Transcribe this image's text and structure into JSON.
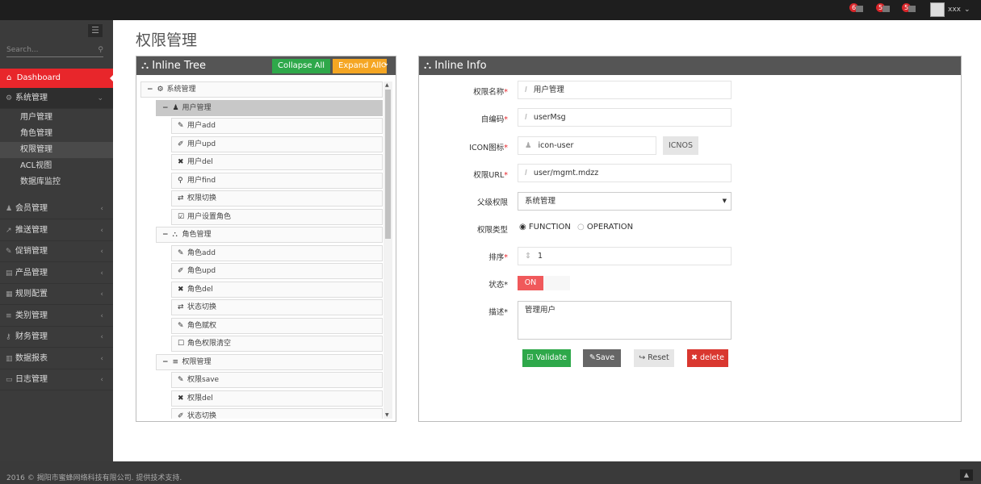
{
  "topbar": {
    "notifications": [
      {
        "count": "6",
        "icon": "bell-icon"
      },
      {
        "count": "5",
        "icon": "envelope-icon"
      },
      {
        "count": "5",
        "icon": "tasks-icon"
      }
    ],
    "user": {
      "name": "xxx"
    }
  },
  "sidebar": {
    "search_placeholder": "Search...",
    "dashboard": "Dashboard",
    "group": {
      "label": "系统管理",
      "icon": "cogs-icon",
      "items": [
        "用户管理",
        "角色管理",
        "权限管理",
        "ACL视图",
        "数据库监控"
      ],
      "active": 2
    },
    "items": [
      {
        "label": "会员管理",
        "icon": "user-icon"
      },
      {
        "label": "推送管理",
        "icon": "share-icon"
      },
      {
        "label": "促销管理",
        "icon": "pencil-icon"
      },
      {
        "label": "产品管理",
        "icon": "book-icon"
      },
      {
        "label": "规则配置",
        "icon": "list-icon"
      },
      {
        "label": "类别管理",
        "icon": "bars-icon"
      },
      {
        "label": "财务管理",
        "icon": "key-icon"
      },
      {
        "label": "数据报表",
        "icon": "bar-chart-icon"
      },
      {
        "label": "日志管理",
        "icon": "credit-card-icon"
      }
    ]
  },
  "page": {
    "title": "权限管理"
  },
  "tree": {
    "title": "Inline Tree",
    "collapse_all": "Collapse All",
    "expand_all": "Expand All",
    "nodes": [
      {
        "level": 0,
        "label": "系统管理",
        "icon": "cogs-icon",
        "toggle": "−"
      },
      {
        "level": 1,
        "label": "用户管理",
        "icon": "user-icon",
        "toggle": "−",
        "selected": true
      },
      {
        "level": 2,
        "label": "用户add",
        "icon": "pencil-icon"
      },
      {
        "level": 2,
        "label": "用户upd",
        "icon": "edit-icon"
      },
      {
        "level": 2,
        "label": "用户del",
        "icon": "times-icon"
      },
      {
        "level": 2,
        "label": "用户find",
        "icon": "search-icon"
      },
      {
        "level": 2,
        "label": "权限切换",
        "icon": "retweet-icon"
      },
      {
        "level": 2,
        "label": "用户设置角色",
        "icon": "check-square-icon"
      },
      {
        "level": 1,
        "label": "角色管理",
        "icon": "sitemap-icon",
        "toggle": "−"
      },
      {
        "level": 2,
        "label": "角色add",
        "icon": "pencil-icon"
      },
      {
        "level": 2,
        "label": "角色upd",
        "icon": "edit-icon"
      },
      {
        "level": 2,
        "label": "角色del",
        "icon": "times-icon"
      },
      {
        "level": 2,
        "label": "状态切换",
        "icon": "retweet-icon"
      },
      {
        "level": 2,
        "label": "角色赋权",
        "icon": "pencil-icon"
      },
      {
        "level": 2,
        "label": "角色权限清空",
        "icon": "square-icon"
      },
      {
        "level": 1,
        "label": "权限管理",
        "icon": "bars-icon",
        "toggle": "−"
      },
      {
        "level": 2,
        "label": "权限save",
        "icon": "pencil-icon"
      },
      {
        "level": 2,
        "label": "权限del",
        "icon": "times-icon"
      },
      {
        "level": 2,
        "label": "状态切换",
        "icon": "edit-icon"
      }
    ]
  },
  "info": {
    "title": "Inline Info",
    "fields": {
      "name": {
        "label": "权限名称",
        "value": "用户管理"
      },
      "code": {
        "label": "自编码",
        "value": "userMsg"
      },
      "icon": {
        "label": "ICON图标",
        "value": "icon-user",
        "button": "ICNOS"
      },
      "url": {
        "label": "权限URL",
        "value": "user/mgmt.mdzz"
      },
      "parent": {
        "label": "父级权限",
        "value": "系统管理"
      },
      "type": {
        "label": "权限类型",
        "options": [
          "FUNCTION",
          "OPERATION"
        ],
        "selected": "FUNCTION"
      },
      "order": {
        "label": "排序",
        "value": "1"
      },
      "status": {
        "label": "状态",
        "value": "ON"
      },
      "desc": {
        "label": "描述",
        "value": "管理用户"
      }
    },
    "buttons": {
      "validate": "Validate",
      "save": "Save",
      "reset": "Reset",
      "delete": "delete"
    }
  },
  "footer": {
    "text": "2016 © 揭阳市蜜蜂网络科技有限公司. 提供技术支持."
  },
  "colors": {
    "accent": "#e8262b",
    "validate": "#2ea84a",
    "expand": "#f5a623",
    "delete": "#d9372f"
  }
}
